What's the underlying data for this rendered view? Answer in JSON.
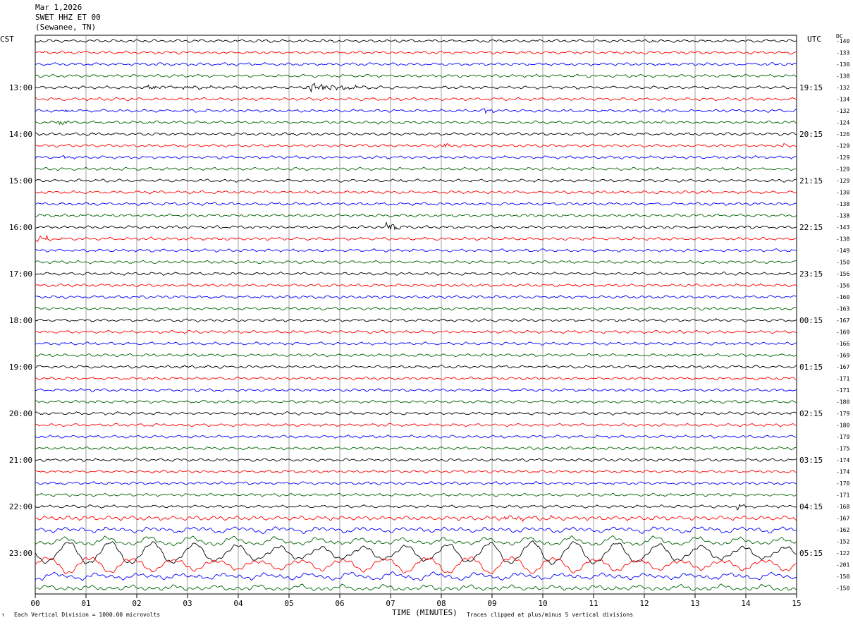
{
  "header": {
    "date": "Mar 1,2026",
    "station": "SWET HHZ ET 00",
    "location": "(Sewanee, TN)"
  },
  "left_timezone": "CST",
  "right_timezone": "UTC",
  "dc_label": "DC",
  "footer": {
    "scale": "Each Vertical Division = 1000.00 microvolts",
    "clip": "Traces clipped at plus/minus 5 vertical divisions",
    "mark": "↑"
  },
  "chart_data": {
    "type": "line",
    "title": "",
    "xlabel": "TIME (MINUTES)",
    "ylabel": "",
    "xlim": [
      0,
      15
    ],
    "x_ticks": [
      "00",
      "01",
      "02",
      "03",
      "04",
      "05",
      "06",
      "07",
      "08",
      "09",
      "10",
      "11",
      "12",
      "13",
      "14",
      "15"
    ],
    "left_hour_labels": [
      "13:00",
      "14:00",
      "15:00",
      "16:00",
      "17:00",
      "18:00",
      "19:00",
      "20:00",
      "21:00",
      "22:00",
      "23:00"
    ],
    "right_hour_labels": [
      "19:15",
      "20:15",
      "21:15",
      "22:15",
      "23:15",
      "00:15",
      "01:15",
      "02:15",
      "03:15",
      "04:15",
      "05:15"
    ],
    "trace_colors": [
      "#000000",
      "#ff0000",
      "#0000ff",
      "#006400"
    ],
    "traces_per_hour": 4,
    "trace_count": 48,
    "dc_offsets": [
      -140,
      -133,
      -130,
      -138,
      -132,
      -134,
      -132,
      -124,
      -126,
      -129,
      -129,
      -129,
      -129,
      -130,
      -138,
      -138,
      -143,
      -138,
      -149,
      -150,
      -156,
      -156,
      -160,
      -163,
      -167,
      -169,
      -166,
      -169,
      -167,
      -171,
      -171,
      -180,
      -179,
      -180,
      -179,
      -175,
      -174,
      -174,
      -170,
      -171,
      -168,
      -167,
      -162,
      -152,
      -122,
      -201,
      -150,
      -150
    ],
    "events": [
      {
        "trace": 0,
        "minute": 5.7,
        "duration": 0.2,
        "amplitude": 2
      },
      {
        "trace": 4,
        "minute": 5.3,
        "duration": 1.6,
        "amplitude": 5
      },
      {
        "trace": 4,
        "minute": 2.0,
        "duration": 3.5,
        "amplitude": 1.5
      },
      {
        "trace": 6,
        "minute": 0.5,
        "duration": 0.5,
        "amplitude": 2
      },
      {
        "trace": 6,
        "minute": 8.8,
        "duration": 0.5,
        "amplitude": 2.5
      },
      {
        "trace": 7,
        "minute": 0.4,
        "duration": 0.6,
        "amplitude": 2.5
      },
      {
        "trace": 9,
        "minute": 8.0,
        "duration": 0.6,
        "amplitude": 2.5
      },
      {
        "trace": 9,
        "minute": 14.7,
        "duration": 0.2,
        "amplitude": 2
      },
      {
        "trace": 10,
        "minute": 0.5,
        "duration": 0.4,
        "amplitude": 1.5
      },
      {
        "trace": 16,
        "minute": 6.9,
        "duration": 0.4,
        "amplitude": 7
      },
      {
        "trace": 17,
        "minute": 0.0,
        "duration": 0.6,
        "amplitude": 5
      },
      {
        "trace": 40,
        "minute": 13.8,
        "duration": 0.3,
        "amplitude": 5
      },
      {
        "trace": 41,
        "minute": 9.0,
        "duration": 4.0,
        "amplitude": 1.5
      }
    ],
    "microseism_traces": [
      42,
      43,
      44,
      45,
      46,
      47
    ],
    "grid": true,
    "clip_divisions": 5
  }
}
